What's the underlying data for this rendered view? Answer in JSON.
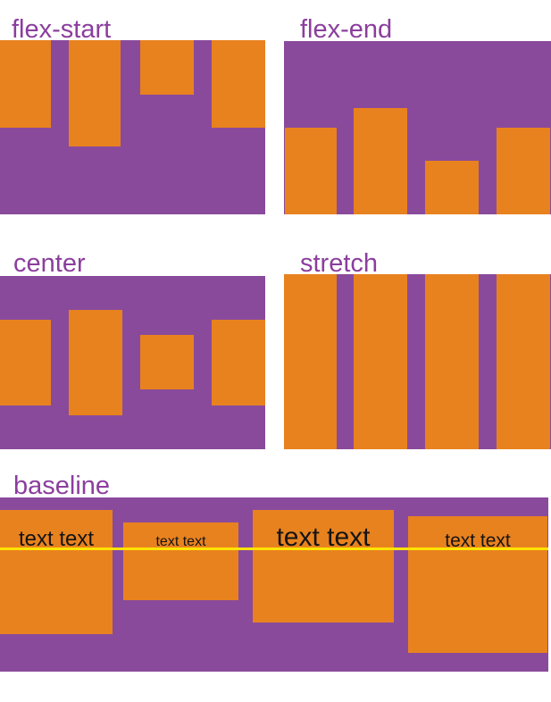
{
  "colors": {
    "item_orange": "#e8821f",
    "container_purple": "#8a4a9b",
    "label_purple": "#8b3e9d",
    "baseline_yellow": "#ffe400",
    "text_black": "#141414"
  },
  "panels": [
    {
      "label": "flex-start"
    },
    {
      "label": "flex-end"
    },
    {
      "label": "center"
    },
    {
      "label": "stretch"
    },
    {
      "label": "baseline",
      "items": [
        {
          "text": "text text"
        },
        {
          "text": "text text"
        },
        {
          "text": "text text"
        },
        {
          "text": "text text"
        }
      ]
    }
  ]
}
